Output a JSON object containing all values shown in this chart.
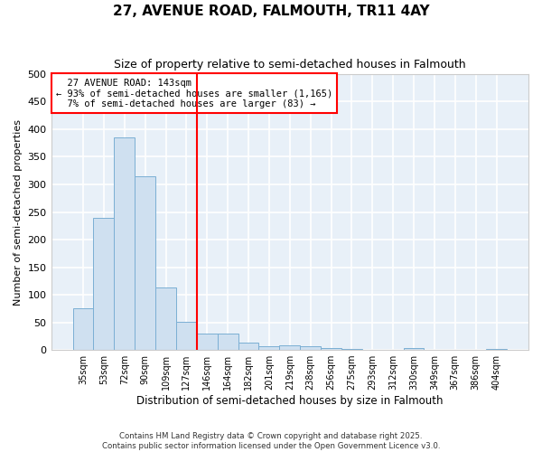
{
  "title": "27, AVENUE ROAD, FALMOUTH, TR11 4AY",
  "subtitle": "Size of property relative to semi-detached houses in Falmouth",
  "xlabel": "Distribution of semi-detached houses by size in Falmouth",
  "ylabel": "Number of semi-detached properties",
  "categories": [
    "35sqm",
    "53sqm",
    "72sqm",
    "90sqm",
    "109sqm",
    "127sqm",
    "146sqm",
    "164sqm",
    "182sqm",
    "201sqm",
    "219sqm",
    "238sqm",
    "256sqm",
    "275sqm",
    "293sqm",
    "312sqm",
    "330sqm",
    "349sqm",
    "367sqm",
    "386sqm",
    "404sqm"
  ],
  "values": [
    75,
    240,
    385,
    315,
    113,
    51,
    29,
    29,
    13,
    7,
    8,
    7,
    4,
    1,
    0,
    0,
    3,
    0,
    0,
    0,
    2
  ],
  "bar_color": "#cfe0f0",
  "bar_edge_color": "#7bafd4",
  "vline_x_index": 6,
  "vline_color": "red",
  "property_label": "27 AVENUE ROAD: 143sqm",
  "pct_smaller": "93% of semi-detached houses are smaller (1,165)",
  "pct_larger": "7% of semi-detached houses are larger (83)",
  "background_color": "#e8f0f8",
  "grid_color": "#ffffff",
  "fig_bg_color": "#ffffff",
  "ylim": [
    0,
    500
  ],
  "yticks": [
    0,
    50,
    100,
    150,
    200,
    250,
    300,
    350,
    400,
    450,
    500
  ],
  "footer_line1": "Contains HM Land Registry data © Crown copyright and database right 2025.",
  "footer_line2": "Contains public sector information licensed under the Open Government Licence v3.0."
}
